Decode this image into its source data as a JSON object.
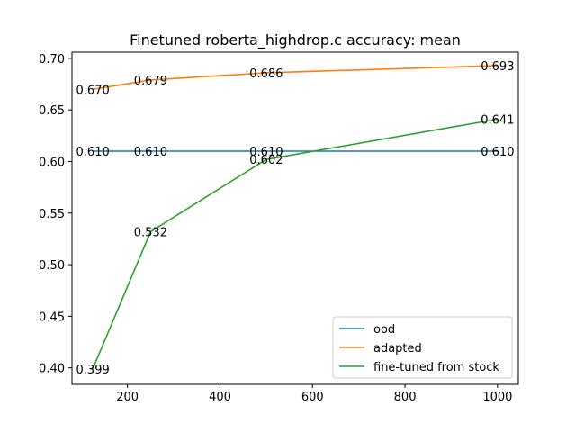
{
  "chart_data": {
    "type": "line",
    "title": "Finetuned roberta_highdrop.c accuracy: mean",
    "xlabel": "",
    "ylabel": "",
    "xlim": [
      80,
      1045
    ],
    "ylim": [
      0.384,
      0.706
    ],
    "xticks": [
      200,
      400,
      600,
      800,
      1000
    ],
    "xtick_labels": [
      "200",
      "400",
      "600",
      "800",
      "1000"
    ],
    "yticks": [
      0.4,
      0.45,
      0.5,
      0.55,
      0.6,
      0.65,
      0.7
    ],
    "ytick_labels": [
      "0.40",
      "0.45",
      "0.50",
      "0.55",
      "0.60",
      "0.65",
      "0.70"
    ],
    "grid": false,
    "legend_position": "lower-right",
    "x": [
      125,
      250,
      500,
      1000
    ],
    "series": [
      {
        "name": "ood",
        "color": "#1f77b4",
        "values": [
          0.61,
          0.61,
          0.61,
          0.61
        ],
        "labels": [
          "0.610",
          "0.610",
          "0.610",
          "0.610"
        ]
      },
      {
        "name": "adapted",
        "color": "#ff7f0e",
        "values": [
          0.67,
          0.679,
          0.686,
          0.693
        ],
        "labels": [
          "0.670",
          "0.679",
          "0.686",
          "0.693"
        ]
      },
      {
        "name": "fine-tuned from stock",
        "color": "#2ca02c",
        "values": [
          0.399,
          0.532,
          0.602,
          0.641
        ],
        "labels": [
          "0.399",
          "0.532",
          "0.602",
          "0.641"
        ]
      }
    ]
  }
}
